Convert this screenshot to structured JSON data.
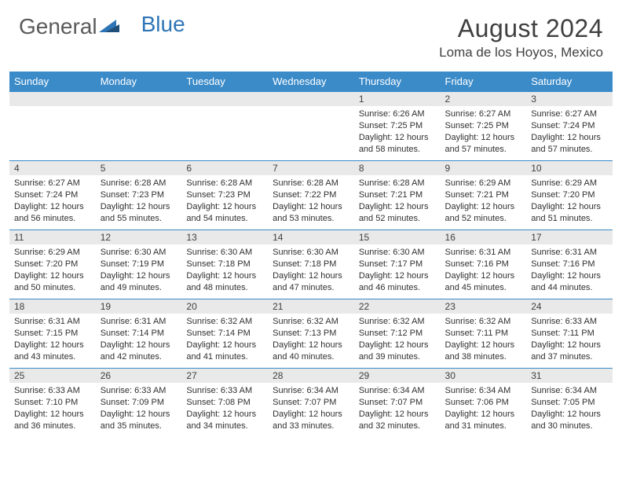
{
  "brand": {
    "part1": "General",
    "part2": "Blue"
  },
  "title": {
    "month": "August 2024",
    "location": "Loma de los Hoyos, Mexico"
  },
  "style": {
    "header_bg": "#3b8bc9",
    "header_text": "#ffffff",
    "daynum_bg": "#e9e9e9",
    "border_color": "#3b8bc9",
    "info_fontsize": 11,
    "daynum_fontsize": 12,
    "title_fontsize": 32,
    "location_fontsize": 17
  },
  "weekdays": [
    "Sunday",
    "Monday",
    "Tuesday",
    "Wednesday",
    "Thursday",
    "Friday",
    "Saturday"
  ],
  "weeks": [
    [
      null,
      null,
      null,
      null,
      {
        "d": "1",
        "sr": "Sunrise: 6:26 AM",
        "ss": "Sunset: 7:25 PM",
        "dl": "Daylight: 12 hours and 58 minutes."
      },
      {
        "d": "2",
        "sr": "Sunrise: 6:27 AM",
        "ss": "Sunset: 7:25 PM",
        "dl": "Daylight: 12 hours and 57 minutes."
      },
      {
        "d": "3",
        "sr": "Sunrise: 6:27 AM",
        "ss": "Sunset: 7:24 PM",
        "dl": "Daylight: 12 hours and 57 minutes."
      }
    ],
    [
      {
        "d": "4",
        "sr": "Sunrise: 6:27 AM",
        "ss": "Sunset: 7:24 PM",
        "dl": "Daylight: 12 hours and 56 minutes."
      },
      {
        "d": "5",
        "sr": "Sunrise: 6:28 AM",
        "ss": "Sunset: 7:23 PM",
        "dl": "Daylight: 12 hours and 55 minutes."
      },
      {
        "d": "6",
        "sr": "Sunrise: 6:28 AM",
        "ss": "Sunset: 7:23 PM",
        "dl": "Daylight: 12 hours and 54 minutes."
      },
      {
        "d": "7",
        "sr": "Sunrise: 6:28 AM",
        "ss": "Sunset: 7:22 PM",
        "dl": "Daylight: 12 hours and 53 minutes."
      },
      {
        "d": "8",
        "sr": "Sunrise: 6:28 AM",
        "ss": "Sunset: 7:21 PM",
        "dl": "Daylight: 12 hours and 52 minutes."
      },
      {
        "d": "9",
        "sr": "Sunrise: 6:29 AM",
        "ss": "Sunset: 7:21 PM",
        "dl": "Daylight: 12 hours and 52 minutes."
      },
      {
        "d": "10",
        "sr": "Sunrise: 6:29 AM",
        "ss": "Sunset: 7:20 PM",
        "dl": "Daylight: 12 hours and 51 minutes."
      }
    ],
    [
      {
        "d": "11",
        "sr": "Sunrise: 6:29 AM",
        "ss": "Sunset: 7:20 PM",
        "dl": "Daylight: 12 hours and 50 minutes."
      },
      {
        "d": "12",
        "sr": "Sunrise: 6:30 AM",
        "ss": "Sunset: 7:19 PM",
        "dl": "Daylight: 12 hours and 49 minutes."
      },
      {
        "d": "13",
        "sr": "Sunrise: 6:30 AM",
        "ss": "Sunset: 7:18 PM",
        "dl": "Daylight: 12 hours and 48 minutes."
      },
      {
        "d": "14",
        "sr": "Sunrise: 6:30 AM",
        "ss": "Sunset: 7:18 PM",
        "dl": "Daylight: 12 hours and 47 minutes."
      },
      {
        "d": "15",
        "sr": "Sunrise: 6:30 AM",
        "ss": "Sunset: 7:17 PM",
        "dl": "Daylight: 12 hours and 46 minutes."
      },
      {
        "d": "16",
        "sr": "Sunrise: 6:31 AM",
        "ss": "Sunset: 7:16 PM",
        "dl": "Daylight: 12 hours and 45 minutes."
      },
      {
        "d": "17",
        "sr": "Sunrise: 6:31 AM",
        "ss": "Sunset: 7:16 PM",
        "dl": "Daylight: 12 hours and 44 minutes."
      }
    ],
    [
      {
        "d": "18",
        "sr": "Sunrise: 6:31 AM",
        "ss": "Sunset: 7:15 PM",
        "dl": "Daylight: 12 hours and 43 minutes."
      },
      {
        "d": "19",
        "sr": "Sunrise: 6:31 AM",
        "ss": "Sunset: 7:14 PM",
        "dl": "Daylight: 12 hours and 42 minutes."
      },
      {
        "d": "20",
        "sr": "Sunrise: 6:32 AM",
        "ss": "Sunset: 7:14 PM",
        "dl": "Daylight: 12 hours and 41 minutes."
      },
      {
        "d": "21",
        "sr": "Sunrise: 6:32 AM",
        "ss": "Sunset: 7:13 PM",
        "dl": "Daylight: 12 hours and 40 minutes."
      },
      {
        "d": "22",
        "sr": "Sunrise: 6:32 AM",
        "ss": "Sunset: 7:12 PM",
        "dl": "Daylight: 12 hours and 39 minutes."
      },
      {
        "d": "23",
        "sr": "Sunrise: 6:32 AM",
        "ss": "Sunset: 7:11 PM",
        "dl": "Daylight: 12 hours and 38 minutes."
      },
      {
        "d": "24",
        "sr": "Sunrise: 6:33 AM",
        "ss": "Sunset: 7:11 PM",
        "dl": "Daylight: 12 hours and 37 minutes."
      }
    ],
    [
      {
        "d": "25",
        "sr": "Sunrise: 6:33 AM",
        "ss": "Sunset: 7:10 PM",
        "dl": "Daylight: 12 hours and 36 minutes."
      },
      {
        "d": "26",
        "sr": "Sunrise: 6:33 AM",
        "ss": "Sunset: 7:09 PM",
        "dl": "Daylight: 12 hours and 35 minutes."
      },
      {
        "d": "27",
        "sr": "Sunrise: 6:33 AM",
        "ss": "Sunset: 7:08 PM",
        "dl": "Daylight: 12 hours and 34 minutes."
      },
      {
        "d": "28",
        "sr": "Sunrise: 6:34 AM",
        "ss": "Sunset: 7:07 PM",
        "dl": "Daylight: 12 hours and 33 minutes."
      },
      {
        "d": "29",
        "sr": "Sunrise: 6:34 AM",
        "ss": "Sunset: 7:07 PM",
        "dl": "Daylight: 12 hours and 32 minutes."
      },
      {
        "d": "30",
        "sr": "Sunrise: 6:34 AM",
        "ss": "Sunset: 7:06 PM",
        "dl": "Daylight: 12 hours and 31 minutes."
      },
      {
        "d": "31",
        "sr": "Sunrise: 6:34 AM",
        "ss": "Sunset: 7:05 PM",
        "dl": "Daylight: 12 hours and 30 minutes."
      }
    ]
  ]
}
